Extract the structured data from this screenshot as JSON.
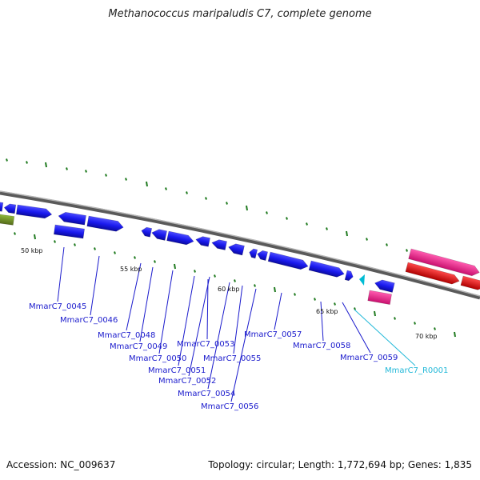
{
  "title": "Methanococcus maripaludis C7, complete genome",
  "footer": {
    "accession": "Accession: NC_009637",
    "summary": "Topology: circular; Length: 1,772,694 bp; Genes: 1,835"
  },
  "colors": {
    "backbone": "#7a7a7a",
    "cds": "#1a1aee",
    "cds_alt": "#6b8e23",
    "rna": "#00bcd4",
    "pink_feature": "#ee1a8c",
    "red_feature": "#ee1a1a",
    "tick": "#1f7a1f",
    "label": "#1a1acc",
    "rna_label": "#22b8d8"
  },
  "scale_labels": [
    "50 kbp",
    "55 kbp",
    "60 kbp",
    "65 kbp",
    "70 kbp"
  ],
  "gene_labels": [
    {
      "text": "MmarC7_0045",
      "kind": "gene"
    },
    {
      "text": "MmarC7_0046",
      "kind": "gene"
    },
    {
      "text": "MmarC7_0048",
      "kind": "gene"
    },
    {
      "text": "MmarC7_0049",
      "kind": "gene"
    },
    {
      "text": "MmarC7_0050",
      "kind": "gene"
    },
    {
      "text": "MmarC7_0051",
      "kind": "gene"
    },
    {
      "text": "MmarC7_0052",
      "kind": "gene"
    },
    {
      "text": "MmarC7_0053",
      "kind": "gene"
    },
    {
      "text": "MmarC7_0054",
      "kind": "gene"
    },
    {
      "text": "MmarC7_0055",
      "kind": "gene"
    },
    {
      "text": "MmarC7_0056",
      "kind": "gene"
    },
    {
      "text": "MmarC7_0057",
      "kind": "gene"
    },
    {
      "text": "MmarC7_0058",
      "kind": "gene"
    },
    {
      "text": "MmarC7_0059",
      "kind": "gene"
    },
    {
      "text": "MmarC7_R0001",
      "kind": "rna"
    }
  ]
}
